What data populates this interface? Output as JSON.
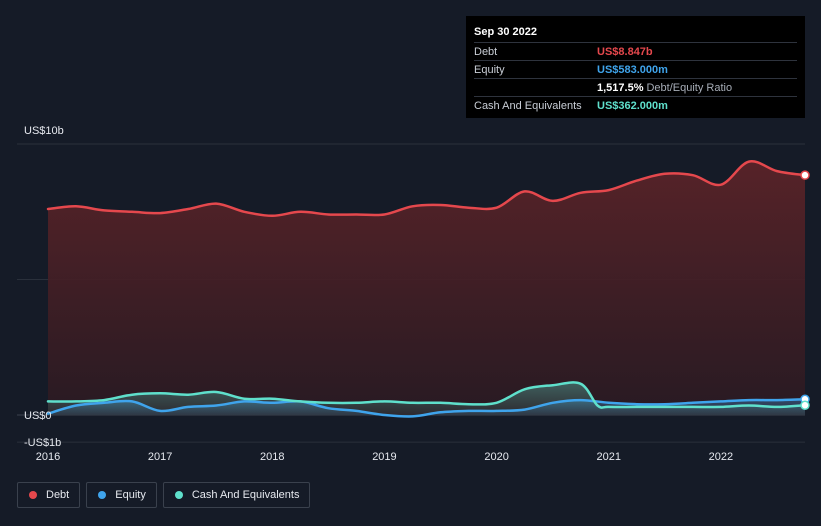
{
  "tooltip": {
    "date": "Sep 30 2022",
    "rows": [
      {
        "label": "Debt",
        "value": "US$8.847b",
        "color": "#e5484d"
      },
      {
        "label": "Equity",
        "value": "US$583.000m",
        "color": "#3fa4ec"
      },
      {
        "label": "",
        "value": "1,517.5%",
        "suffix": "Debt/Equity Ratio"
      },
      {
        "label": "Cash And Equivalents",
        "value": "US$362.000m",
        "color": "#5fe0cc"
      }
    ]
  },
  "legend": [
    {
      "label": "Debt",
      "color": "#e5484d"
    },
    {
      "label": "Equity",
      "color": "#3fa4ec"
    },
    {
      "label": "Cash And Equivalents",
      "color": "#5fe0cc"
    }
  ],
  "chart_data": {
    "type": "area",
    "y_tick_labels": [
      "US$10b",
      "US$0",
      "-US$1b"
    ],
    "ylim": [
      -1,
      10
    ],
    "xlim": [
      2016.0,
      2022.75
    ],
    "x_tick_labels": [
      "2016",
      "2017",
      "2018",
      "2019",
      "2020",
      "2021",
      "2022"
    ],
    "x_ticks": [
      2016,
      2017,
      2018,
      2019,
      2020,
      2021,
      2022
    ],
    "grid": true,
    "legend_position": "bottom-left",
    "series": [
      {
        "name": "Debt",
        "color": "#e5484d",
        "x": [
          2016.0,
          2016.25,
          2016.5,
          2016.75,
          2017.0,
          2017.25,
          2017.5,
          2017.75,
          2018.0,
          2018.25,
          2018.5,
          2018.75,
          2019.0,
          2019.25,
          2019.5,
          2019.75,
          2020.0,
          2020.25,
          2020.5,
          2020.75,
          2021.0,
          2021.25,
          2021.5,
          2021.75,
          2022.0,
          2022.25,
          2022.5,
          2022.75
        ],
        "y": [
          7.6,
          7.7,
          7.55,
          7.5,
          7.45,
          7.6,
          7.8,
          7.5,
          7.35,
          7.5,
          7.4,
          7.4,
          7.4,
          7.7,
          7.75,
          7.65,
          7.65,
          8.25,
          7.9,
          8.2,
          8.3,
          8.65,
          8.9,
          8.85,
          8.5,
          9.35,
          9.0,
          8.85
        ]
      },
      {
        "name": "Equity",
        "color": "#3fa4ec",
        "x": [
          2016.0,
          2016.25,
          2016.5,
          2016.75,
          2017.0,
          2017.25,
          2017.5,
          2017.75,
          2018.0,
          2018.25,
          2018.5,
          2018.75,
          2019.0,
          2019.25,
          2019.5,
          2019.75,
          2020.0,
          2020.25,
          2020.5,
          2020.75,
          2021.0,
          2021.25,
          2021.5,
          2021.75,
          2022.0,
          2022.25,
          2022.5,
          2022.75
        ],
        "y": [
          0.05,
          0.35,
          0.45,
          0.5,
          0.15,
          0.3,
          0.35,
          0.5,
          0.45,
          0.5,
          0.25,
          0.15,
          0.0,
          -0.05,
          0.1,
          0.15,
          0.15,
          0.2,
          0.45,
          0.55,
          0.45,
          0.4,
          0.4,
          0.45,
          0.5,
          0.55,
          0.55,
          0.58
        ]
      },
      {
        "name": "Cash And Equivalents",
        "color": "#5fe0cc",
        "x": [
          2016.0,
          2016.25,
          2016.5,
          2016.75,
          2017.0,
          2017.25,
          2017.5,
          2017.75,
          2018.0,
          2018.25,
          2018.5,
          2018.75,
          2019.0,
          2019.25,
          2019.5,
          2019.75,
          2020.0,
          2020.25,
          2020.5,
          2020.75,
          2020.9,
          2021.0,
          2021.25,
          2021.5,
          2021.75,
          2022.0,
          2022.25,
          2022.5,
          2022.75
        ],
        "y": [
          0.5,
          0.5,
          0.55,
          0.75,
          0.8,
          0.75,
          0.85,
          0.6,
          0.6,
          0.5,
          0.45,
          0.45,
          0.5,
          0.45,
          0.45,
          0.4,
          0.45,
          0.95,
          1.1,
          1.15,
          0.35,
          0.3,
          0.3,
          0.3,
          0.3,
          0.3,
          0.35,
          0.3,
          0.36
        ]
      }
    ]
  }
}
